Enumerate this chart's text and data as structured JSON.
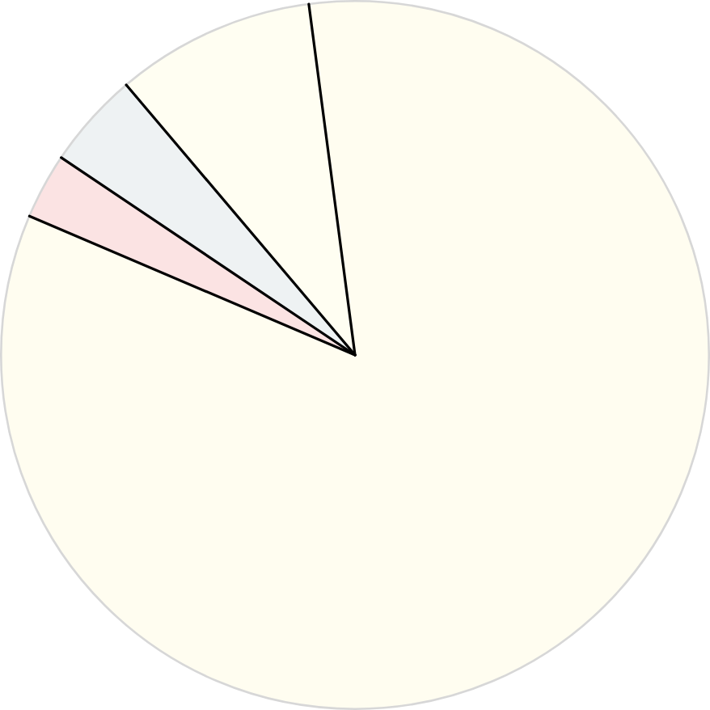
{
  "chart_data": {
    "type": "pie",
    "categories": [
      null,
      null,
      null,
      null
    ],
    "values": [
      83.5,
      3.0,
      4.4,
      9.1
    ],
    "colors": [
      "#fffdf0",
      "#fbe3e3",
      "#eef2f3",
      "#fffef2"
    ]
  }
}
